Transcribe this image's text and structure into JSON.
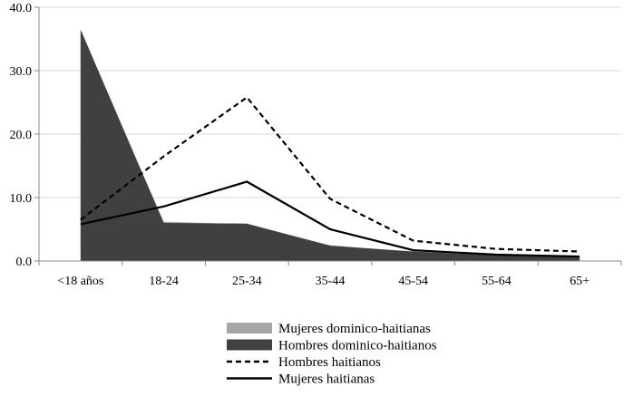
{
  "chart_data": {
    "type": "area",
    "title": "",
    "xlabel": "",
    "ylabel": "",
    "categories": [
      "<18 años",
      "18-24",
      "25-34",
      "35-44",
      "45-54",
      "55-64",
      "65+"
    ],
    "ylim": [
      0,
      40
    ],
    "yticks": [
      "0.0",
      "10.0",
      "20.0",
      "30.0",
      "40.0"
    ],
    "grid": "horizontal",
    "legend_position": "bottom",
    "series": [
      {
        "name": "Mujeres dominico-haitianas",
        "kind": "area",
        "color": "#a6a6a6",
        "values": [
          36.0,
          6.2,
          5.8,
          2.5,
          1.4,
          0.8,
          0.5
        ]
      },
      {
        "name": "Hombres dominico-haitianos",
        "kind": "area",
        "color": "#404040",
        "values": [
          36.5,
          6.0,
          5.9,
          2.4,
          1.5,
          0.9,
          0.6
        ]
      },
      {
        "name": "Hombres haitianos",
        "kind": "line",
        "style": "dashed",
        "color": "#000000",
        "values": [
          6.5,
          16.5,
          25.8,
          9.8,
          3.2,
          1.9,
          1.5
        ]
      },
      {
        "name": "Mujeres haitianas",
        "kind": "line",
        "style": "solid",
        "color": "#000000",
        "values": [
          5.8,
          8.6,
          12.5,
          5.0,
          1.7,
          1.0,
          0.7
        ]
      }
    ]
  }
}
